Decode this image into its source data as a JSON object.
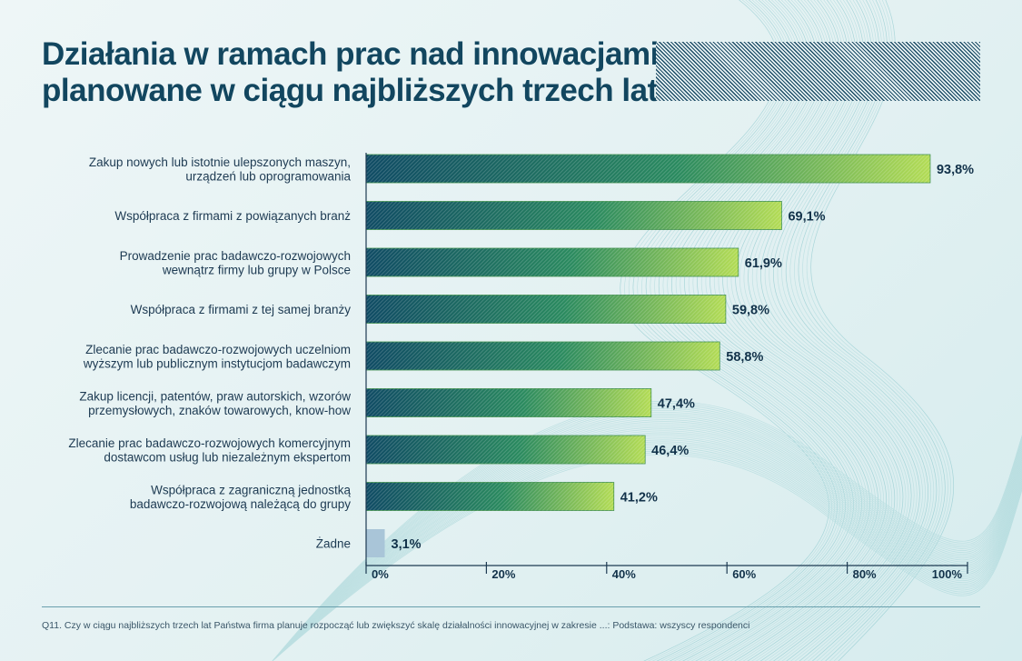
{
  "title": {
    "line1": "Działania w ramach prac nad innowacjami",
    "line2": "planowane w ciągu najbliższych trzech lat"
  },
  "footnote": "Q11. Czy w ciągu najbliższych trzech lat Państwa firma planuje rozpocząć lub zwiększyć skalę działalności innowacyjnej w zakresie ...: Podstawa: wszyscy respondenci",
  "colors": {
    "bar_start": "#0f4b64",
    "bar_end": "#b3dc55",
    "bar_none": "#a9c5d8",
    "axis": "#1d3a52",
    "label": "#1d3a52",
    "value": "#12324a"
  },
  "chart_data": {
    "type": "bar",
    "orientation": "horizontal",
    "categories": [
      [
        "Zakup nowych lub istotnie ulepszonych maszyn,",
        "urządzeń lub oprogramowania"
      ],
      [
        "Współpraca z firmami z powiązanych branż"
      ],
      [
        "Prowadzenie prac badawczo-rozwojowych",
        "wewnątrz firmy lub grupy w Polsce"
      ],
      [
        "Współpraca z firmami z tej samej branży"
      ],
      [
        "Zlecanie prac badawczo-rozwojowych uczelniom",
        "wyższym lub publicznym instytucjom badawczym"
      ],
      [
        "Zakup licencji, patentów, praw autorskich, wzorów",
        "przemysłowych, znaków towarowych, know-how"
      ],
      [
        "Zlecanie prac badawczo-rozwojowych komercyjnym",
        "dostawcom usług lub niezależnym ekspertom"
      ],
      [
        "Współpraca z zagraniczną jednostką",
        "badawczo-rozwojową należącą do grupy"
      ],
      [
        "Żadne"
      ]
    ],
    "values": [
      93.8,
      69.1,
      61.9,
      59.8,
      58.8,
      47.4,
      46.4,
      41.2,
      3.1
    ],
    "value_labels": [
      "93,8%",
      "69,1%",
      "61,9%",
      "59,8%",
      "58,8%",
      "47,4%",
      "46,4%",
      "41,2%",
      "3,1%"
    ],
    "xlim": [
      0,
      100
    ],
    "xticks": [
      0,
      20,
      40,
      60,
      80,
      100
    ],
    "xtick_labels": [
      "0%",
      "20%",
      "40%",
      "60%",
      "80%",
      "100%"
    ],
    "highlight_last": true,
    "grid": false
  }
}
